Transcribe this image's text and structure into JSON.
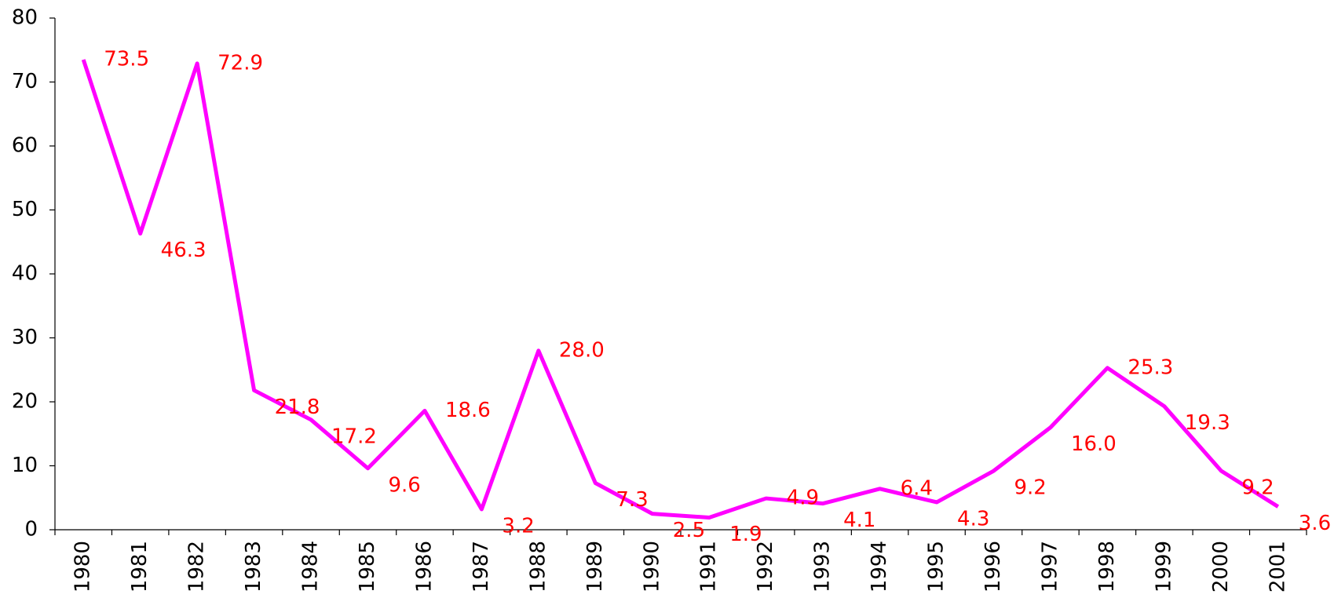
{
  "chart_data": {
    "type": "line",
    "categories": [
      "1980",
      "1981",
      "1982",
      "1983",
      "1984",
      "1985",
      "1986",
      "1987",
      "1988",
      "1989",
      "1990",
      "1991",
      "1992",
      "1993",
      "1994",
      "1995",
      "1996",
      "1997",
      "1998",
      "1999",
      "2000",
      "2001"
    ],
    "series": [
      {
        "color": "#ff00ff",
        "values": [
          73.5,
          46.3,
          72.9,
          21.8,
          17.2,
          9.6,
          18.6,
          3.2,
          28.0,
          7.3,
          2.5,
          1.9,
          4.9,
          4.1,
          6.4,
          4.3,
          9.2,
          16.0,
          25.3,
          19.3,
          9.2,
          3.6
        ],
        "value_labels": [
          "73.5",
          "46.3",
          "72.9",
          "21.8",
          "17.2",
          "9.6",
          "18.6",
          "3.2",
          "28.0",
          "7.3",
          "2.5",
          "1.9",
          "4.9",
          "4.1",
          "6.4",
          "4.3",
          "9.2",
          "16.0",
          "25.3",
          "19.3",
          "9.2",
          "3.6"
        ]
      }
    ],
    "label_color": "#ff0000",
    "ylim": [
      0,
      80
    ],
    "yticks": [
      0,
      10,
      20,
      30,
      40,
      50,
      60,
      70,
      80
    ],
    "grid": false
  }
}
